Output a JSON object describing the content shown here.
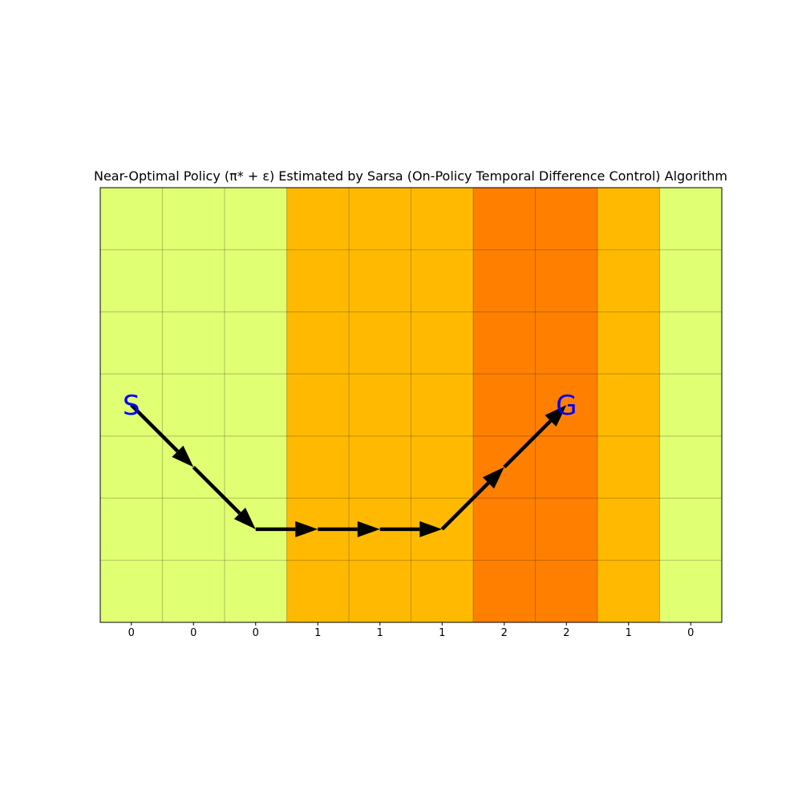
{
  "chart_data": {
    "type": "heatmap",
    "title": "Near-Optimal Policy (π* + ε) Estimated by Sarsa (On-Policy Temporal Difference Control) Algorithm",
    "xlabel": "",
    "ylabel": "",
    "n_cols": 10,
    "n_rows": 7,
    "x_tick_labels": [
      "0",
      "0",
      "0",
      "1",
      "1",
      "1",
      "2",
      "2",
      "1",
      "0"
    ],
    "wind_strength": [
      0,
      0,
      0,
      1,
      1,
      1,
      2,
      2,
      1,
      0
    ],
    "cell_colors": {
      "0": "#e1ff73",
      "1": "#ffba00",
      "2": "#ff8000"
    },
    "grid": true,
    "start": {
      "label": "S",
      "col": 0,
      "row": 3
    },
    "goal": {
      "label": "G",
      "col": 7,
      "row": 3
    },
    "path": [
      [
        0,
        3
      ],
      [
        1,
        4
      ],
      [
        2,
        5
      ],
      [
        3,
        5
      ],
      [
        4,
        5
      ],
      [
        5,
        5
      ],
      [
        6,
        4
      ],
      [
        7,
        3
      ]
    ],
    "label_color": "#0000ff",
    "path_color": "#000000"
  }
}
